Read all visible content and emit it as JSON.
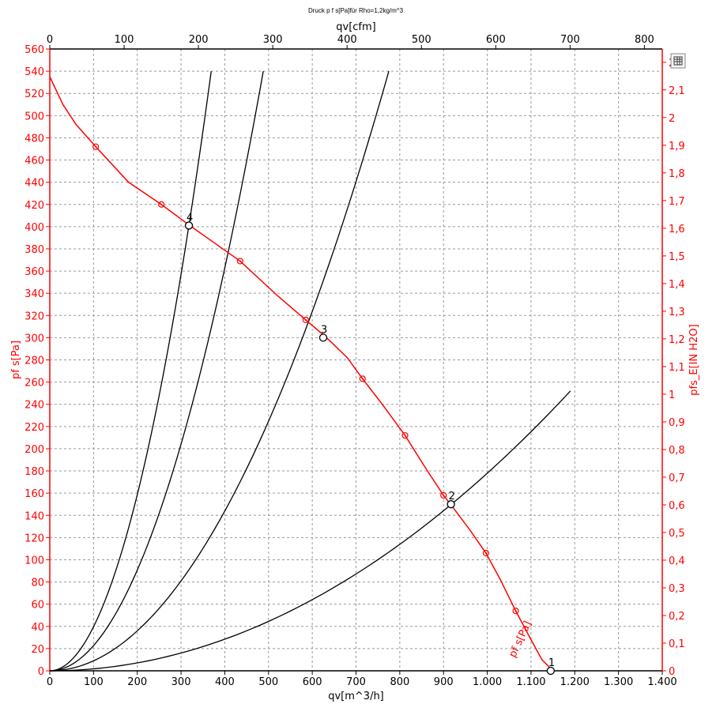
{
  "chart_data": {
    "type": "line",
    "title": "Druck p f s[Pa]für Rho=1,2kg/m^3",
    "xlabel": "qv[m^3/h]",
    "x2label": "qv[cfm]",
    "ylabel": "pf s[Pa]",
    "y2label": "pfs_E[IN H2O]",
    "xlim": [
      0,
      1400
    ],
    "ylim": [
      0,
      560
    ],
    "x2lim": [
      0,
      824
    ],
    "y2lim": [
      0,
      2.248
    ],
    "x_ticks": [
      0,
      100,
      200,
      300,
      400,
      500,
      600,
      700,
      800,
      900,
      1000,
      1100,
      1200,
      1300,
      1400
    ],
    "x_tick_labels": [
      "0",
      "100",
      "200",
      "300",
      "400",
      "500",
      "600",
      "700",
      "800",
      "900",
      "1.000",
      "1.100",
      "1.200",
      "1.300",
      "1.400"
    ],
    "x2_ticks": [
      0,
      100,
      200,
      300,
      400,
      500,
      600,
      700,
      800
    ],
    "x2_tick_labels": [
      "0",
      "100",
      "200",
      "300",
      "400",
      "500",
      "600",
      "700",
      "800"
    ],
    "y_ticks": [
      0,
      20,
      40,
      60,
      80,
      100,
      120,
      140,
      160,
      180,
      200,
      220,
      240,
      260,
      280,
      300,
      320,
      340,
      360,
      380,
      400,
      420,
      440,
      460,
      480,
      500,
      520,
      540,
      560
    ],
    "y_tick_labels": [
      "0",
      "20",
      "40",
      "60",
      "80",
      "100",
      "120",
      "140",
      "160",
      "180",
      "200",
      "220",
      "240",
      "260",
      "280",
      "300",
      "320",
      "340",
      "360",
      "380",
      "400",
      "420",
      "440",
      "460",
      "480",
      "500",
      "520",
      "540",
      "560"
    ],
    "y2_ticks": [
      0,
      0.1,
      0.2,
      0.3,
      0.4,
      0.5,
      0.6,
      0.7,
      0.8,
      0.9,
      1.0,
      1.1,
      1.2,
      1.3,
      1.4,
      1.5,
      1.6,
      1.7,
      1.8,
      1.9,
      2.0,
      2.1,
      2.2
    ],
    "y2_tick_labels": [
      "0",
      "0,1",
      "0,2",
      "0,3",
      "0,4",
      "0,5",
      "0,6",
      "0,7",
      "0,8",
      "0,9",
      "1",
      "1,1",
      "1,2",
      "1,3",
      "1,4",
      "1,5",
      "1,6",
      "1,7",
      "1,8",
      "1,9",
      "2",
      "2,1",
      "2,2"
    ],
    "grid": true,
    "fan_curve": {
      "name": "pf s[Pa]",
      "color": "#ff0000",
      "points": [
        [
          0,
          535
        ],
        [
          30,
          510
        ],
        [
          60,
          492
        ],
        [
          105,
          472
        ],
        [
          180,
          440
        ],
        [
          255,
          420
        ],
        [
          320,
          401
        ],
        [
          435,
          369
        ],
        [
          520,
          338
        ],
        [
          585,
          316
        ],
        [
          630,
          301
        ],
        [
          680,
          282
        ],
        [
          715,
          263
        ],
        [
          760,
          240
        ],
        [
          812,
          212
        ],
        [
          860,
          182
        ],
        [
          900,
          158
        ],
        [
          918,
          149
        ],
        [
          960,
          127
        ],
        [
          997,
          106
        ],
        [
          1030,
          82
        ],
        [
          1065,
          54
        ],
        [
          1100,
          28
        ],
        [
          1125,
          10
        ],
        [
          1150,
          0
        ]
      ],
      "markers": [
        [
          105,
          472
        ],
        [
          255,
          420
        ],
        [
          435,
          369
        ],
        [
          585,
          316
        ],
        [
          715,
          263
        ],
        [
          812,
          212
        ],
        [
          900,
          158
        ],
        [
          997,
          106
        ],
        [
          1065,
          54
        ]
      ]
    },
    "system_curves": [
      {
        "label": "1",
        "k_qmax": 1190,
        "pmax": 252,
        "color": "#000000"
      },
      {
        "label": "2",
        "k_qmax": 775,
        "pmax": 540,
        "color": "#000000"
      },
      {
        "label": "3",
        "k_qmax": 488,
        "pmax": 540,
        "color": "#000000"
      },
      {
        "label": "4",
        "k_qmax": 369,
        "pmax": 540,
        "color": "#000000"
      }
    ],
    "operating_points": [
      {
        "label": "1",
        "x": 1145,
        "y": 0
      },
      {
        "label": "2",
        "x": 917,
        "y": 150
      },
      {
        "label": "3",
        "x": 625,
        "y": 300
      },
      {
        "label": "4",
        "x": 318,
        "y": 401
      }
    ]
  },
  "export_icon": "table-export-icon"
}
